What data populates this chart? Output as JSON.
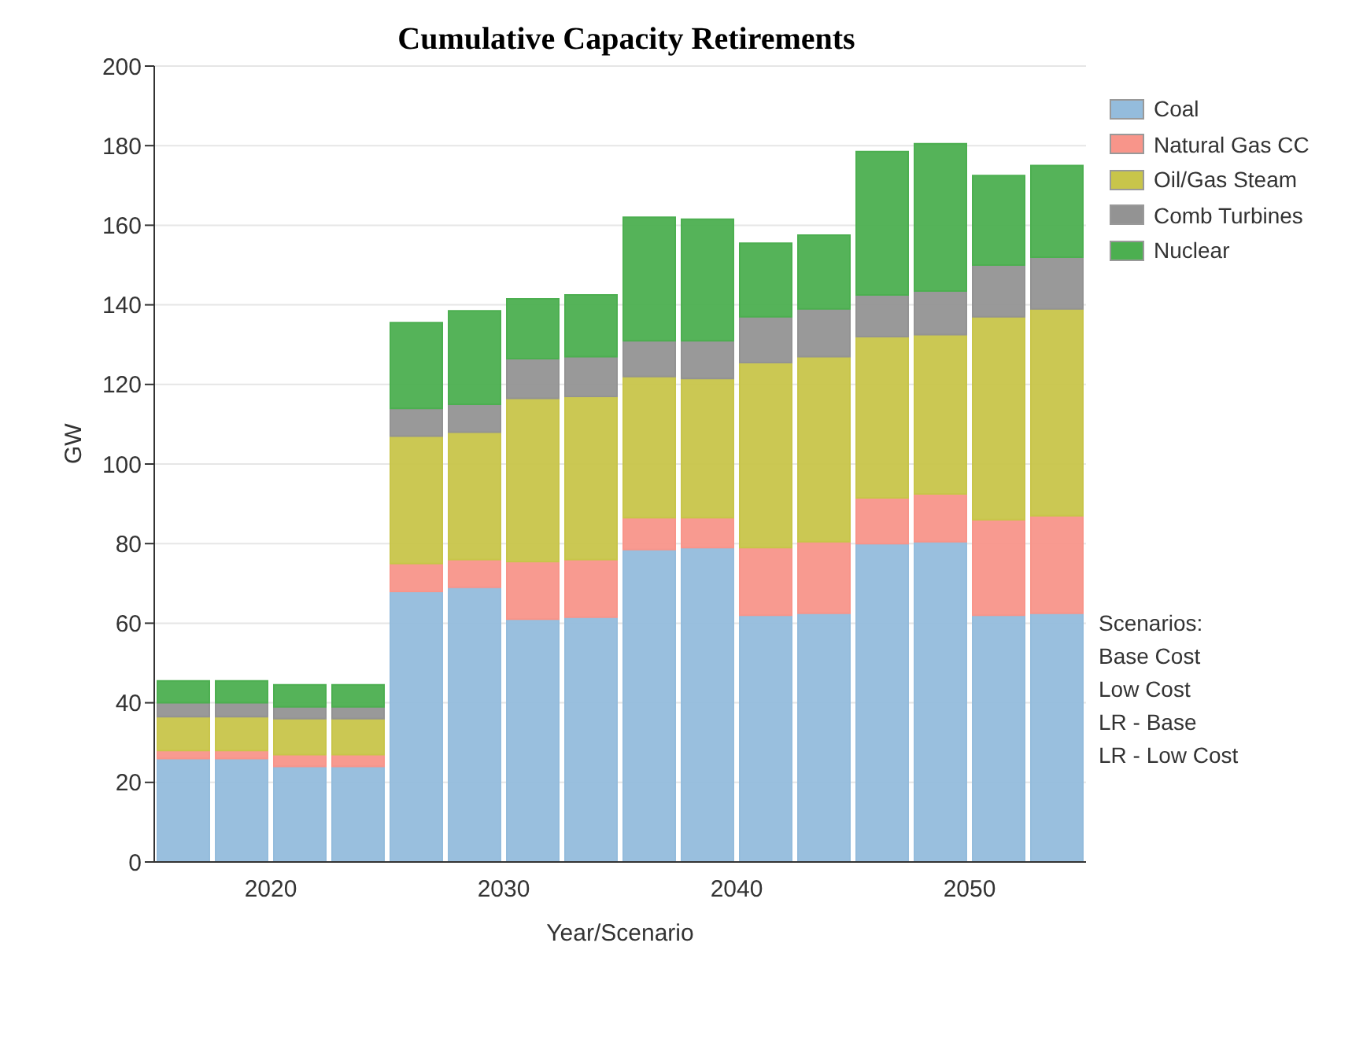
{
  "chart_data": {
    "type": "bar",
    "title": "Cumulative Capacity Retirements",
    "xlabel": "Year/Scenario",
    "ylabel": "GW",
    "categories": [
      null,
      "2020",
      null,
      null,
      null,
      "2030",
      null,
      null,
      null,
      "2040",
      null,
      null,
      null,
      "2050",
      null,
      null
    ],
    "stacked": true,
    "series": [
      {
        "name": "Coal",
        "color": "#94bcdc",
        "values": [
          26,
          26,
          24,
          24,
          68,
          69,
          61,
          61.5,
          78.5,
          79,
          62,
          62.5,
          80,
          80.5,
          62,
          62.5
        ]
      },
      {
        "name": "Natural Gas CC",
        "color": "#f8958a",
        "values": [
          2,
          2,
          3,
          3,
          7,
          7,
          14.5,
          14.5,
          8,
          7.5,
          17,
          18,
          11.5,
          12,
          24,
          24.5
        ]
      },
      {
        "name": "Oil/Gas Steam",
        "color": "#c8c54a",
        "values": [
          8.5,
          8.5,
          9,
          9,
          32,
          32,
          41,
          41,
          35.5,
          35,
          46.5,
          46.5,
          40.5,
          40,
          51,
          52
        ]
      },
      {
        "name": "Comb Turbines",
        "color": "#939393",
        "values": [
          3.5,
          3.5,
          3,
          3,
          7,
          7,
          10,
          10,
          9,
          9.5,
          11.5,
          12,
          10.5,
          11,
          13,
          13
        ]
      },
      {
        "name": "Nuclear",
        "color": "#4caf50",
        "values": [
          5.5,
          5.5,
          5.5,
          5.5,
          21.5,
          23.5,
          15,
          15.5,
          31,
          30.5,
          18.5,
          18.5,
          36,
          37,
          22.5,
          23
        ]
      }
    ],
    "ylim": [
      0,
      200
    ],
    "yticks": [
      0,
      20,
      40,
      60,
      80,
      100,
      120,
      140,
      160,
      180,
      200
    ],
    "grid": "y",
    "legend": "top right",
    "annotations": [
      "Scenarios:",
      "Base Cost",
      "Low Cost",
      "LR - Base",
      "LR - Low Cost"
    ]
  }
}
